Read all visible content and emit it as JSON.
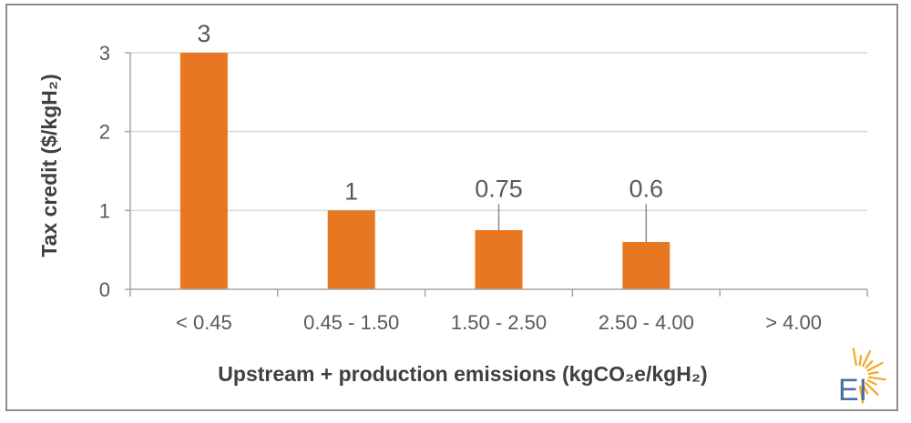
{
  "chart_data": {
    "type": "bar",
    "categories": [
      "< 0.45",
      "0.45 - 1.50",
      "1.50 - 2.50",
      "2.50 - 4.00",
      "> 4.00"
    ],
    "values": [
      3,
      1,
      0.75,
      0.6,
      0
    ],
    "data_labels": [
      "3",
      "1",
      "0.75",
      "0.6",
      ""
    ],
    "title": "",
    "xlabel": "Upstream + production emissions (kgCO₂e/kgH₂)",
    "ylabel": "Tax credit ($/kgH₂)",
    "ylim": [
      0,
      3
    ],
    "yticks": [
      0,
      1,
      2,
      3
    ],
    "grid": true,
    "bar_color": "#E87722",
    "gridline_color": "#d9d9d9"
  },
  "logo": {
    "text": "EI",
    "sun_color": "#F5A623"
  }
}
